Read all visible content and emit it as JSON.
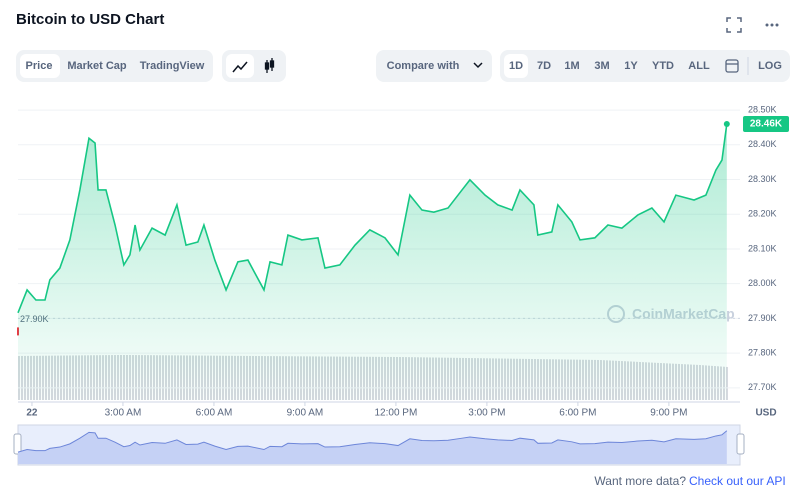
{
  "header": {
    "title": "Bitcoin to USD Chart"
  },
  "toolbar": {
    "tabs": [
      "Price",
      "Market Cap",
      "TradingView"
    ],
    "compare": "Compare with",
    "ranges": [
      "1D",
      "7D",
      "1M",
      "3M",
      "1Y",
      "YTD",
      "ALL"
    ],
    "log": "LOG"
  },
  "chart_data": {
    "type": "area",
    "watermark": "CoinMarketCap",
    "x_unit": "USD",
    "series": [
      {
        "color": "#16c784",
        "x": [
          -0.46,
          -0.16,
          0.13,
          0.43,
          0.59,
          0.92,
          1.25,
          1.58,
          1.88,
          2.08,
          2.18,
          2.44,
          2.74,
          3.03,
          3.23,
          3.4,
          3.56,
          3.96,
          4.39,
          4.78,
          5.08,
          5.47,
          5.67,
          6.03,
          6.4,
          6.79,
          7.12,
          7.65,
          7.85,
          8.24,
          8.44,
          8.9,
          9.43,
          9.66,
          10.15,
          10.65,
          11.14,
          11.64,
          12.07,
          12.46,
          12.86,
          13.25,
          13.72,
          14.18,
          14.44,
          14.94,
          15.36,
          15.83,
          16.09,
          16.55,
          16.68,
          17.14,
          17.34,
          17.8,
          18.07,
          18.56,
          18.99,
          19.45,
          19.98,
          20.44,
          20.84,
          21.23,
          21.83,
          22.22,
          22.55,
          22.75,
          22.91
        ],
        "values": [
          27916,
          27982,
          27953,
          27953,
          28011,
          28045,
          28126,
          28270,
          28419,
          28405,
          28270,
          28270,
          28169,
          28054,
          28083,
          28169,
          28097,
          28160,
          28140,
          28227,
          28111,
          28120,
          28169,
          28068,
          27982,
          28063,
          28068,
          27982,
          28063,
          28054,
          28140,
          28126,
          28132,
          28045,
          28054,
          28111,
          28155,
          28132,
          28083,
          28255,
          28212,
          28206,
          28218,
          28270,
          28299,
          28255,
          28227,
          28212,
          28270,
          28227,
          28140,
          28149,
          28227,
          28178,
          28126,
          28132,
          28169,
          28160,
          28198,
          28218,
          28178,
          28255,
          28241,
          28255,
          28327,
          28356,
          28460
        ]
      }
    ],
    "last_price": {
      "value": 28460,
      "label": "28.46K"
    },
    "open_price": {
      "value": 27900,
      "label": "27.90K"
    },
    "xlim": [
      -0.46,
      23.18
    ],
    "xticks": [
      {
        "value": 0,
        "label": "22"
      },
      {
        "value": 3,
        "label": "3:00 AM"
      },
      {
        "value": 6,
        "label": "6:00 AM"
      },
      {
        "value": 9,
        "label": "9:00 AM"
      },
      {
        "value": 12,
        "label": "12:00 PM"
      },
      {
        "value": 15,
        "label": "3:00 PM"
      },
      {
        "value": 18,
        "label": "6:00 PM"
      },
      {
        "value": 21,
        "label": "9:00 PM"
      }
    ],
    "ylim": [
      27665,
      28529
    ],
    "yticks": [
      {
        "value": 27700,
        "label": "27.70K"
      },
      {
        "value": 27800,
        "label": "27.80K"
      },
      {
        "value": 27900,
        "label": "27.90K"
      },
      {
        "value": 28000,
        "label": "28.00K"
      },
      {
        "value": 28100,
        "label": "28.10K"
      },
      {
        "value": 28200,
        "label": "28.20K"
      },
      {
        "value": 28300,
        "label": "28.30K"
      },
      {
        "value": 28400,
        "label": "28.40K"
      },
      {
        "value": 28500,
        "label": "28.50K"
      }
    ],
    "grid": true
  },
  "footer": {
    "text": "Want more data?",
    "link": "Check out our API"
  }
}
